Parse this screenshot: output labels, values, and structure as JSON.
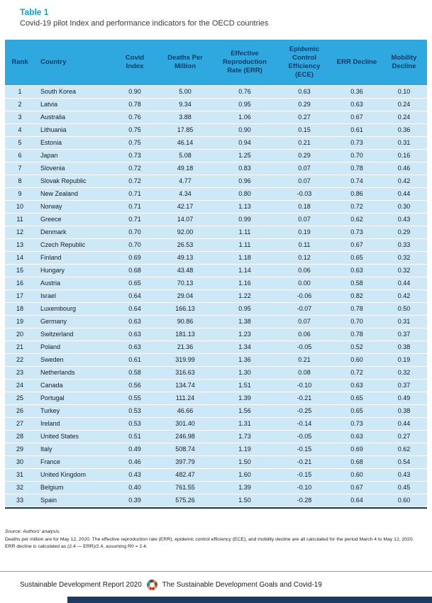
{
  "page": {
    "table_label": "Table 1",
    "subtitle": "Covid-19 pilot Index and performance indicators for the OECD countries"
  },
  "table": {
    "columns": [
      "Rank",
      "Country",
      "Covid Index",
      "Deaths Per Million",
      "Effective Reproduction Rate (ERR)",
      "Epidemic Control Efficiency (ECE)",
      "ERR Decline",
      "Mobility Decline"
    ],
    "rows": [
      [
        "1",
        "South Korea",
        "0.90",
        "5.00",
        "0.76",
        "0.63",
        "0.36",
        "0.10"
      ],
      [
        "2",
        "Latvia",
        "0.78",
        "9.34",
        "0.95",
        "0.29",
        "0.63",
        "0.24"
      ],
      [
        "3",
        "Australia",
        "0.76",
        "3.88",
        "1.06",
        "0.27",
        "0.67",
        "0.24"
      ],
      [
        "4",
        "Lithuania",
        "0.75",
        "17.85",
        "0.90",
        "0.15",
        "0.61",
        "0.36"
      ],
      [
        "5",
        "Estonia",
        "0.75",
        "46.14",
        "0.94",
        "0.21",
        "0.73",
        "0.31"
      ],
      [
        "6",
        "Japan",
        "0.73",
        "5.08",
        "1.25",
        "0.29",
        "0.70",
        "0.16"
      ],
      [
        "7",
        "Slovenia",
        "0.72",
        "49.18",
        "0.83",
        "0.07",
        "0.78",
        "0.46"
      ],
      [
        "8",
        "Slovak Republic",
        "0.72",
        "4.77",
        "0.96",
        "0.07",
        "0.74",
        "0.42"
      ],
      [
        "9",
        "New Zealand",
        "0.71",
        "4.34",
        "0.80",
        "-0.03",
        "0.86",
        "0.44"
      ],
      [
        "10",
        "Norway",
        "0.71",
        "42.17",
        "1.13",
        "0.18",
        "0.72",
        "0.30"
      ],
      [
        "11",
        "Greece",
        "0.71",
        "14.07",
        "0.99",
        "0.07",
        "0.62",
        "0.43"
      ],
      [
        "12",
        "Denmark",
        "0.70",
        "92.00",
        "1.11",
        "0.19",
        "0.73",
        "0.29"
      ],
      [
        "13",
        "Czech Republic",
        "0.70",
        "26.53",
        "1.11",
        "0.11",
        "0.67",
        "0.33"
      ],
      [
        "14",
        "Finland",
        "0.69",
        "49.13",
        "1.18",
        "0.12",
        "0.65",
        "0.32"
      ],
      [
        "15",
        "Hungary",
        "0.68",
        "43.48",
        "1.14",
        "0.06",
        "0.63",
        "0.32"
      ],
      [
        "16",
        "Austria",
        "0.65",
        "70.13",
        "1.16",
        "0.00",
        "0.58",
        "0.44"
      ],
      [
        "17",
        "Israel",
        "0.64",
        "29.04",
        "1.22",
        "-0.06",
        "0.82",
        "0.42"
      ],
      [
        "18",
        "Luxembourg",
        "0.64",
        "166.13",
        "0.95",
        "-0.07",
        "0.78",
        "0.50"
      ],
      [
        "19",
        "Germany",
        "0.63",
        "90.86",
        "1.38",
        "0.07",
        "0.70",
        "0.31"
      ],
      [
        "20",
        "Switzerland",
        "0.63",
        "181.13",
        "1.23",
        "0.06",
        "0.78",
        "0.37"
      ],
      [
        "21",
        "Poland",
        "0.63",
        "21.36",
        "1.34",
        "-0.05",
        "0.52",
        "0.38"
      ],
      [
        "22",
        "Sweden",
        "0.61",
        "319.99",
        "1.36",
        "0.21",
        "0.60",
        "0.19"
      ],
      [
        "23",
        "Netherlands",
        "0.58",
        "316.63",
        "1.30",
        "0.08",
        "0.72",
        "0.32"
      ],
      [
        "24",
        "Canada",
        "0.56",
        "134.74",
        "1.51",
        "-0.10",
        "0.63",
        "0.37"
      ],
      [
        "25",
        "Portugal",
        "0.55",
        "111.24",
        "1.39",
        "-0.21",
        "0.65",
        "0.49"
      ],
      [
        "26",
        "Turkey",
        "0.53",
        "46.66",
        "1.56",
        "-0.25",
        "0.65",
        "0.38"
      ],
      [
        "27",
        "Ireland",
        "0.53",
        "301.40",
        "1.31",
        "-0.14",
        "0.73",
        "0.44"
      ],
      [
        "28",
        "United States",
        "0.51",
        "246.98",
        "1.73",
        "-0.05",
        "0.63",
        "0.27"
      ],
      [
        "29",
        "Italy",
        "0.49",
        "508.74",
        "1.19",
        "-0.15",
        "0.69",
        "0.62"
      ],
      [
        "30",
        "France",
        "0.46",
        "397.79",
        "1.50",
        "-0.21",
        "0.68",
        "0.54"
      ],
      [
        "31",
        "United Kingdom",
        "0.43",
        "482.47",
        "1.60",
        "-0.15",
        "0.60",
        "0.43"
      ],
      [
        "32",
        "Belgium",
        "0.40",
        "761.55",
        "1.39",
        "-0.10",
        "0.67",
        "0.45"
      ],
      [
        "33",
        "Spain",
        "0.39",
        "575.26",
        "1.50",
        "-0.28",
        "0.64",
        "0.60"
      ]
    ]
  },
  "footnotes": {
    "source": "Source: Authors' analysis.",
    "note": "Deaths per million are for May 12, 2020. The effective reproduction rate (ERR), epidemic control efficiency (ECE), and mobility decline are all calculated for the period March 4 to May 12, 2020. ERR decline is calculated as (2.4 — ERR)/2.4, assuming R0 = 2.4."
  },
  "footer": {
    "report": "Sustainable Development Report 2020",
    "title": "The Sustainable Development Goals and Covid-19",
    "logo": "sdg-wheel-icon"
  },
  "colors": {
    "title_teal": "#00A7D7",
    "header_blue": "#2FA8DF",
    "row_blue": "#CDE9F7",
    "dark_navy": "#17365D",
    "bottom_bar": "#1B3C62"
  }
}
